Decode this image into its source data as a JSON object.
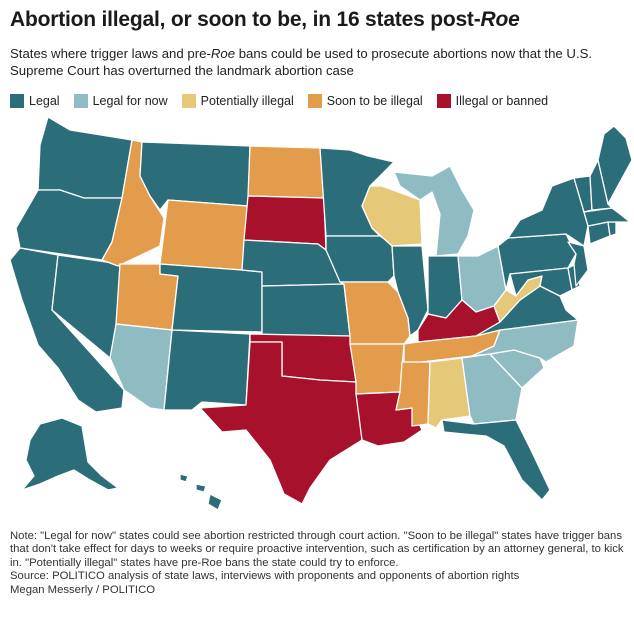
{
  "header": {
    "title_main": "Abortion illegal, or soon to be, in 16 states post-",
    "title_em": "Roe",
    "subtitle_part1": "States where trigger laws and pre-",
    "subtitle_em": "Roe",
    "subtitle_part2": " bans could be used to prosecute abortions now that the U.S. Supreme Court has overturned the landmark abortion case"
  },
  "legend": [
    {
      "label": "Legal",
      "color": "#2c6d7a"
    },
    {
      "label": "Legal for now",
      "color": "#8fbcc2"
    },
    {
      "label": "Potentially illegal",
      "color": "#e5c878"
    },
    {
      "label": "Soon to be illegal",
      "color": "#e39c4b"
    },
    {
      "label": "Illegal or banned",
      "color": "#a8112b"
    }
  ],
  "map": {
    "states": [
      {
        "id": "WA",
        "status": "legal"
      },
      {
        "id": "OR",
        "status": "legal"
      },
      {
        "id": "CA",
        "status": "legal"
      },
      {
        "id": "NV",
        "status": "legal"
      },
      {
        "id": "ID",
        "status": "soon"
      },
      {
        "id": "MT",
        "status": "legal"
      },
      {
        "id": "WY",
        "status": "soon"
      },
      {
        "id": "UT",
        "status": "soon"
      },
      {
        "id": "AZ",
        "status": "legal_for_now"
      },
      {
        "id": "CO",
        "status": "legal"
      },
      {
        "id": "NM",
        "status": "legal"
      },
      {
        "id": "ND",
        "status": "soon"
      },
      {
        "id": "SD",
        "status": "illegal"
      },
      {
        "id": "NE",
        "status": "legal"
      },
      {
        "id": "KS",
        "status": "legal"
      },
      {
        "id": "OK",
        "status": "illegal"
      },
      {
        "id": "TX",
        "status": "illegal"
      },
      {
        "id": "MN",
        "status": "legal"
      },
      {
        "id": "IA",
        "status": "legal"
      },
      {
        "id": "MO",
        "status": "soon"
      },
      {
        "id": "AR",
        "status": "soon"
      },
      {
        "id": "LA",
        "status": "illegal"
      },
      {
        "id": "WI",
        "status": "potentially"
      },
      {
        "id": "IL",
        "status": "legal"
      },
      {
        "id": "MI",
        "status": "legal_for_now"
      },
      {
        "id": "IN",
        "status": "legal"
      },
      {
        "id": "OH",
        "status": "legal_for_now"
      },
      {
        "id": "KY",
        "status": "illegal"
      },
      {
        "id": "TN",
        "status": "soon"
      },
      {
        "id": "MS",
        "status": "soon"
      },
      {
        "id": "AL",
        "status": "potentially"
      },
      {
        "id": "GA",
        "status": "legal_for_now"
      },
      {
        "id": "FL",
        "status": "legal"
      },
      {
        "id": "SC",
        "status": "legal_for_now"
      },
      {
        "id": "NC",
        "status": "legal_for_now"
      },
      {
        "id": "VA",
        "status": "legal"
      },
      {
        "id": "WV",
        "status": "potentially"
      },
      {
        "id": "PA",
        "status": "legal"
      },
      {
        "id": "NY",
        "status": "legal"
      },
      {
        "id": "VT",
        "status": "legal"
      },
      {
        "id": "NH",
        "status": "legal"
      },
      {
        "id": "ME",
        "status": "legal"
      },
      {
        "id": "MA",
        "status": "legal"
      },
      {
        "id": "CT",
        "status": "legal"
      },
      {
        "id": "RI",
        "status": "legal"
      },
      {
        "id": "NJ",
        "status": "legal"
      },
      {
        "id": "DE",
        "status": "legal"
      },
      {
        "id": "MD",
        "status": "legal"
      },
      {
        "id": "AK",
        "status": "legal"
      },
      {
        "id": "HI",
        "status": "legal"
      }
    ]
  },
  "footer": {
    "note": "Note: \"Legal for now\" states could see abortion restricted through court action. \"Soon to be illegal\" states have trigger bans that don't take effect for days to weeks or require proactive intervention, such as certification by an attorney general, to kick in. \"Potentially illegal\" states have pre-Roe bans the state could try to enforce.",
    "source": "Source: POLITICO analysis of state laws, interviews with proponents and opponents of abortion rights",
    "credit": "Megan Messerly / POLITICO"
  }
}
